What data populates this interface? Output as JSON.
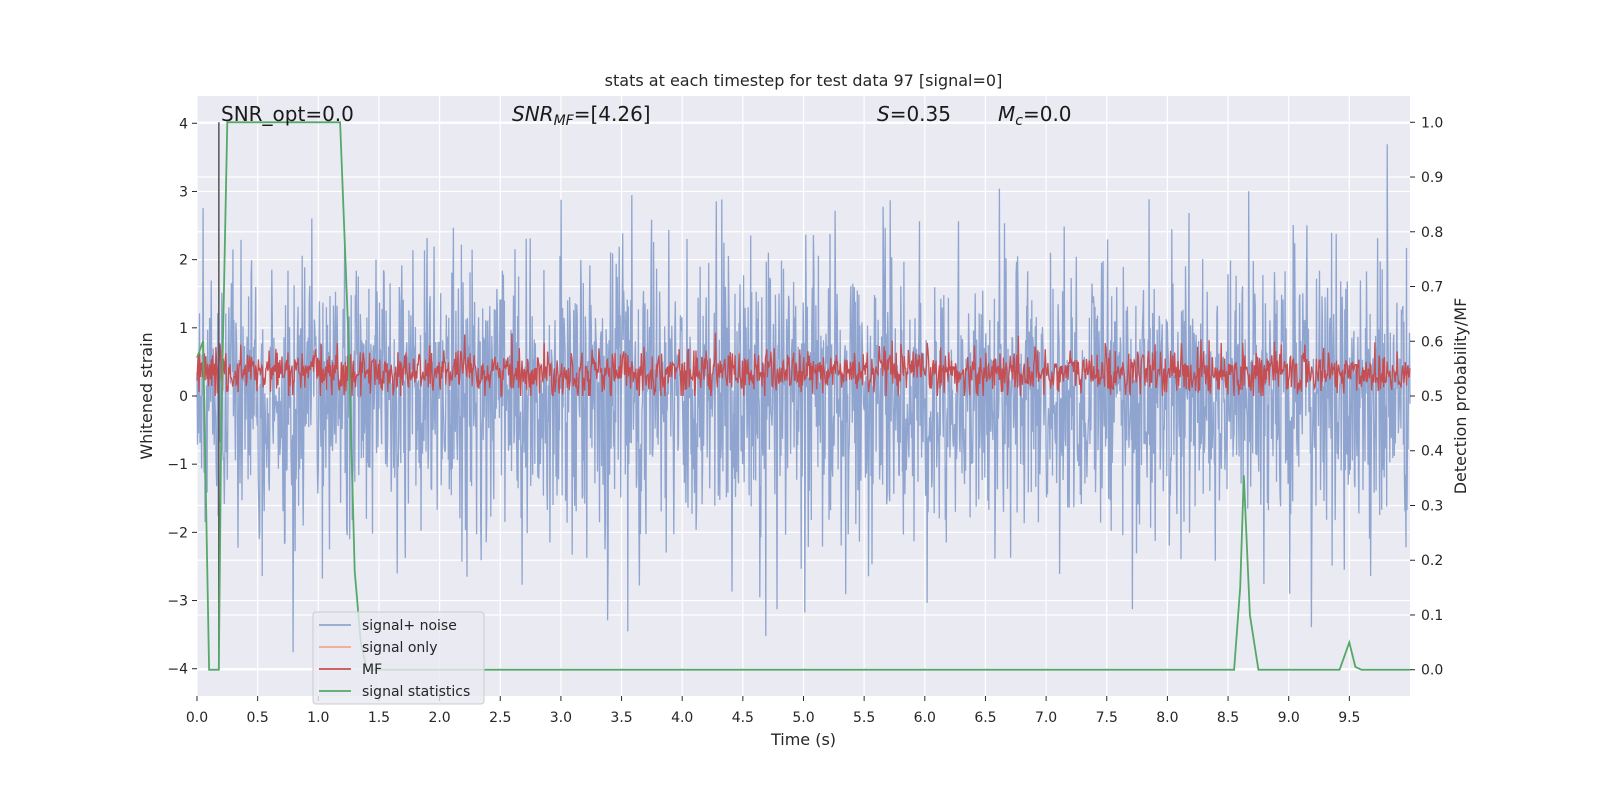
{
  "chart_data": {
    "type": "line",
    "title": "stats at each timestep for test data 97 [signal=0]",
    "xlabel": "Time (s)",
    "ylabel": "Whitened strain",
    "y2label": "Detection probability/MF",
    "xlim": [
      0.0,
      10.0
    ],
    "ylim": [
      -4.4,
      4.4
    ],
    "y2lim": [
      -0.048,
      1.048
    ],
    "xticks": [
      "0.0",
      "0.5",
      "1.0",
      "1.5",
      "2.0",
      "2.5",
      "3.0",
      "3.5",
      "4.0",
      "4.5",
      "5.0",
      "5.5",
      "6.0",
      "6.5",
      "7.0",
      "7.5",
      "8.0",
      "8.5",
      "9.0",
      "9.5"
    ],
    "xtick_values": [
      0.0,
      0.5,
      1.0,
      1.5,
      2.0,
      2.5,
      3.0,
      3.5,
      4.0,
      4.5,
      5.0,
      5.5,
      6.0,
      6.5,
      7.0,
      7.5,
      8.0,
      8.5,
      9.0,
      9.5
    ],
    "yticks": [
      "−4",
      "−3",
      "−2",
      "−1",
      "0",
      "1",
      "2",
      "3",
      "4"
    ],
    "ytick_values": [
      -4,
      -3,
      -2,
      -1,
      0,
      1,
      2,
      3,
      4
    ],
    "y2ticks": [
      "0.0",
      "0.1",
      "0.2",
      "0.3",
      "0.4",
      "0.5",
      "0.6",
      "0.7",
      "0.8",
      "0.9",
      "1.0"
    ],
    "y2tick_values": [
      0.0,
      0.1,
      0.2,
      0.3,
      0.4,
      0.5,
      0.6,
      0.7,
      0.8,
      0.9,
      1.0
    ],
    "grid": true,
    "legend_position": "lower-left",
    "annotations": {
      "snr_opt": "SNR_opt=0.0",
      "snr_mf_sym": "SNR",
      "snr_mf_sub": "MF",
      "snr_mf_val": "=[4.26]",
      "s_sym": "S",
      "s_val": "=0.35",
      "mc_sym": "M",
      "mc_sub": "c",
      "mc_val": "=0.0"
    },
    "series": [
      {
        "name": "signal+ noise",
        "color": "#8fa5cf",
        "description_axis": "left",
        "typical_range": [
          -2.0,
          2.0
        ],
        "peak_range": [
          -4.0,
          3.85
        ]
      },
      {
        "name": "signal only",
        "color": "#f0a88c",
        "description_axis": "left",
        "values": []
      },
      {
        "name": "MF",
        "color": "#c44e52",
        "description_axis": "left",
        "typical_range": [
          0.0,
          0.75
        ],
        "peak_range": [
          0.0,
          1.0
        ]
      },
      {
        "name": "signal statistics",
        "color": "#55a868",
        "description_axis": "right",
        "x": [
          0.0,
          0.05,
          0.1,
          0.12,
          0.18,
          0.2,
          0.25,
          0.3,
          0.5,
          1.0,
          1.18,
          1.25,
          1.3,
          1.35,
          1.4,
          1.6,
          2.0,
          8.0,
          8.55,
          8.6,
          8.63,
          8.68,
          8.75,
          8.8,
          9.0,
          9.42,
          9.5,
          9.55,
          9.6,
          9.7,
          10.0
        ],
        "values": [
          0.57,
          0.6,
          0.0,
          0.0,
          0.0,
          0.45,
          1.0,
          1.0,
          1.0,
          1.0,
          1.0,
          0.6,
          0.18,
          0.05,
          0.0,
          0.0,
          0.0,
          0.0,
          0.0,
          0.15,
          0.355,
          0.1,
          0.0,
          0.0,
          0.0,
          0.0,
          0.05,
          0.005,
          0.0,
          0.0,
          0.0
        ]
      }
    ],
    "marker_line": {
      "x": 0.18,
      "color": "#555555"
    }
  }
}
